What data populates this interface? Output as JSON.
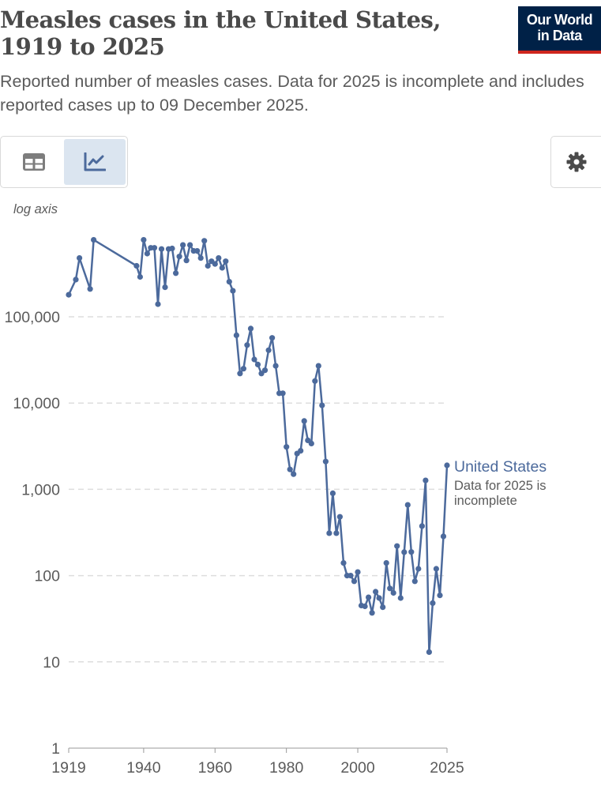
{
  "header": {
    "title": "Measles cases in the United States, 1919 to 2025",
    "subtitle": "Reported number of measles cases. Data for 2025 is incomplete and includes reported cases up to 09 December 2025.",
    "logo_line1": "Our World",
    "logo_line2": "in Data"
  },
  "controls": {
    "table_tab": "table-icon",
    "chart_tab": "line-chart-icon",
    "settings": "gear-icon",
    "axis_mode_label": "log axis"
  },
  "colors": {
    "series": "#4c6a9c",
    "grid": "#dddddd",
    "logo_bg": "#002147",
    "logo_accent": "#ce261e"
  },
  "chart_data": {
    "type": "line",
    "title": "Measles cases in the United States, 1919 to 2025",
    "ylabel": "log axis",
    "yscale": "log",
    "ylim": [
      1,
      1000000
    ],
    "xlim": [
      1919,
      2025
    ],
    "grid": true,
    "y_ticks": [
      {
        "value": 1,
        "label": "1"
      },
      {
        "value": 10,
        "label": "10"
      },
      {
        "value": 100,
        "label": "100"
      },
      {
        "value": 1000,
        "label": "1,000"
      },
      {
        "value": 10000,
        "label": "10,000"
      },
      {
        "value": 100000,
        "label": "100,000"
      }
    ],
    "x_ticks": [
      {
        "value": 1919,
        "label": "1919"
      },
      {
        "value": 1940,
        "label": "1940"
      },
      {
        "value": 1960,
        "label": "1960"
      },
      {
        "value": 1980,
        "label": "1980"
      },
      {
        "value": 2000,
        "label": "2000"
      },
      {
        "value": 2025,
        "label": "2025"
      }
    ],
    "series": [
      {
        "name": "United States",
        "note": "Data for 2025 is incomplete",
        "x": [
          1919,
          1921,
          1922,
          1925,
          1926,
          1938,
          1939,
          1940,
          1941,
          1942,
          1943,
          1944,
          1945,
          1946,
          1947,
          1948,
          1949,
          1950,
          1951,
          1952,
          1953,
          1954,
          1955,
          1956,
          1957,
          1958,
          1959,
          1960,
          1961,
          1962,
          1963,
          1964,
          1965,
          1966,
          1967,
          1968,
          1969,
          1970,
          1971,
          1972,
          1973,
          1974,
          1975,
          1976,
          1977,
          1978,
          1979,
          1980,
          1981,
          1982,
          1983,
          1984,
          1985,
          1986,
          1987,
          1988,
          1989,
          1990,
          1991,
          1992,
          1993,
          1994,
          1995,
          1996,
          1997,
          1998,
          1999,
          2000,
          2001,
          2002,
          2003,
          2004,
          2005,
          2006,
          2007,
          2008,
          2009,
          2010,
          2011,
          2012,
          2013,
          2014,
          2015,
          2016,
          2017,
          2018,
          2019,
          2020,
          2021,
          2022,
          2023,
          2024,
          2025
        ],
        "values": [
          180000,
          270000,
          480000,
          210000,
          780000,
          390000,
          290000,
          780000,
          540000,
          630000,
          630000,
          140000,
          610000,
          220000,
          610000,
          620000,
          320000,
          500000,
          680000,
          450000,
          680000,
          580000,
          580000,
          480000,
          760000,
          390000,
          440000,
          410000,
          480000,
          370000,
          440000,
          255000,
          200000,
          61000,
          22000,
          25000,
          47000,
          73000,
          32000,
          28000,
          22000,
          24000,
          41000,
          57000,
          27000,
          13000,
          13000,
          3100,
          1700,
          1500,
          2600,
          2800,
          6200,
          3700,
          3400,
          18000,
          27000,
          9400,
          2100,
          310,
          900,
          310,
          480,
          140,
          100,
          100,
          86,
          110,
          45,
          44,
          56,
          37,
          65,
          55,
          43,
          140,
          71,
          63,
          220,
          55,
          187,
          660,
          188,
          86,
          120,
          375,
          1270,
          13,
          48,
          120,
          59,
          285,
          1900
        ]
      }
    ]
  }
}
